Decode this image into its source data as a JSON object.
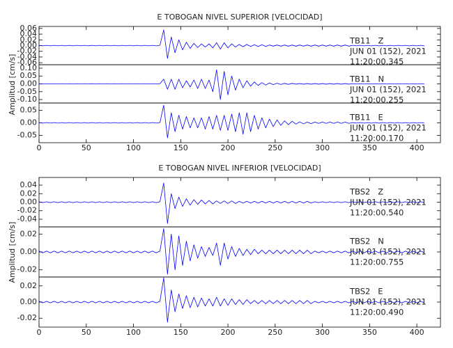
{
  "chart_data": [
    {
      "type": "line",
      "title": "E TOBOGAN NIVEL SUPERIOR [VELOCIDAD]",
      "y_label": "Amplitud [cm/s]",
      "xlim": [
        0,
        425
      ],
      "xticks": [
        0,
        50,
        100,
        150,
        200,
        250,
        300,
        350,
        400
      ],
      "x": [
        0,
        4,
        8,
        12,
        16,
        20,
        24,
        28,
        32,
        36,
        40,
        44,
        48,
        52,
        56,
        60,
        64,
        68,
        72,
        76,
        80,
        84,
        88,
        92,
        96,
        100,
        104,
        108,
        112,
        116,
        120,
        124,
        128,
        132,
        136,
        140,
        144,
        148,
        152,
        156,
        160,
        164,
        168,
        172,
        176,
        180,
        184,
        188,
        192,
        196,
        200,
        204,
        208,
        212,
        216,
        220,
        224,
        228,
        232,
        236,
        240,
        244,
        248,
        252,
        256,
        260,
        264,
        268,
        272,
        276,
        280,
        284,
        288,
        292,
        296,
        300,
        304,
        308,
        312,
        316,
        320,
        324,
        328,
        332,
        336,
        340,
        344,
        348,
        352,
        356,
        360,
        364,
        368,
        372,
        376,
        380,
        384,
        388,
        392,
        396,
        400,
        404,
        408
      ],
      "series": [
        {
          "name": "TB11   Z",
          "date": "JUN 01 (152), 2021",
          "time": "11:20:00.345",
          "color": "#0000ff",
          "ylim": [
            -0.067,
            0.067
          ],
          "yticks": [
            0.06,
            0.04,
            0.02,
            {
              "value": 0,
              "label": "0.00"
            },
            -0.02,
            -0.04,
            -0.06
          ],
          "values": [
            0.001,
            -0.001,
            0.001,
            -0.001,
            0.001,
            -0.001,
            0.001,
            -0.001,
            0.001,
            -0.001,
            0.001,
            -0.001,
            0.001,
            -0.001,
            0.001,
            -0.001,
            0.001,
            -0.001,
            0.001,
            -0.001,
            0.001,
            -0.001,
            0.001,
            -0.001,
            0.001,
            -0.001,
            0.001,
            -0.001,
            0.001,
            -0.001,
            0.001,
            -0.001,
            0.001,
            0.055,
            -0.045,
            0.03,
            -0.025,
            0.02,
            -0.015,
            0.012,
            -0.01,
            0.008,
            -0.007,
            0.006,
            -0.005,
            0.006,
            -0.008,
            0.01,
            -0.012,
            0.01,
            -0.008,
            0.006,
            -0.005,
            0.004,
            -0.004,
            0.004,
            -0.003,
            0.003,
            -0.003,
            0.003,
            -0.003,
            0.002,
            -0.002,
            0.002,
            -0.002,
            0.002,
            -0.002,
            0.002,
            -0.002,
            0.002,
            -0.002,
            0.002,
            -0.002,
            0.002,
            -0.002,
            0.002,
            -0.002,
            0.002,
            -0.002,
            0.002,
            -0.002,
            0.002,
            -0.002,
            0.001,
            -0.001,
            0.001,
            -0.001,
            0.001,
            -0.001,
            0.001,
            -0.001,
            0.001,
            -0.001,
            0.001,
            -0.001,
            0.001,
            -0.001,
            0.001,
            -0.001,
            0.001,
            -0.001,
            0.001,
            -0.001
          ]
        },
        {
          "name": "TB11   N",
          "date": "JUN 01 (152), 2021",
          "time": "11:20:00.255",
          "color": "#0000ff",
          "ylim": [
            -0.122,
            0.122
          ],
          "yticks": [
            {
              "value": 0.1,
              "label": "0.10"
            },
            0.05,
            {
              "value": 0,
              "label": "0.00"
            },
            -0.05,
            {
              "value": -0.1,
              "label": "-0.10"
            }
          ],
          "values": [
            0.001,
            -0.001,
            0.001,
            -0.001,
            0.001,
            -0.001,
            0.001,
            -0.001,
            0.001,
            -0.001,
            0.001,
            -0.001,
            0.001,
            -0.001,
            0.001,
            -0.001,
            0.001,
            -0.001,
            0.001,
            -0.001,
            0.001,
            -0.001,
            0.001,
            -0.001,
            0.001,
            -0.001,
            0.001,
            -0.001,
            0.001,
            -0.001,
            0.001,
            -0.001,
            0.001,
            0.03,
            -0.035,
            0.03,
            -0.035,
            0.03,
            -0.025,
            0.02,
            -0.02,
            0.025,
            -0.03,
            0.03,
            -0.03,
            0.025,
            -0.05,
            0.09,
            -0.1,
            0.08,
            -0.07,
            0.05,
            -0.04,
            0.03,
            -0.025,
            0.02,
            -0.015,
            0.012,
            -0.01,
            0.008,
            -0.008,
            0.006,
            -0.005,
            0.004,
            -0.004,
            0.003,
            -0.003,
            0.003,
            -0.002,
            0.002,
            -0.002,
            0.002,
            -0.002,
            0.002,
            -0.002,
            0.002,
            -0.002,
            0.002,
            -0.002,
            0.002,
            -0.002,
            0.002,
            -0.002,
            0.001,
            -0.001,
            0.001,
            -0.001,
            0.001,
            -0.001,
            0.001,
            -0.001,
            0.001,
            -0.001,
            0.001,
            -0.001,
            0.001,
            -0.001,
            0.001,
            -0.001,
            0.001,
            -0.001,
            0.001,
            -0.001
          ]
        },
        {
          "name": "TB11   E",
          "date": "JUN 01 (152), 2021",
          "time": "11:20:00.170",
          "color": "#0000ff",
          "ylim": [
            -0.079,
            0.079
          ],
          "yticks": [
            0.05,
            {
              "value": 0,
              "label": "0.00"
            },
            -0.05
          ],
          "values": [
            0.001,
            -0.001,
            0.001,
            -0.001,
            0.001,
            -0.001,
            0.001,
            -0.001,
            0.001,
            -0.001,
            0.001,
            -0.001,
            0.001,
            -0.001,
            0.001,
            -0.001,
            0.001,
            -0.001,
            0.001,
            -0.001,
            0.001,
            -0.001,
            0.001,
            -0.001,
            0.001,
            -0.001,
            0.001,
            -0.001,
            0.001,
            -0.001,
            0.001,
            -0.001,
            0.001,
            0.07,
            -0.06,
            0.04,
            -0.035,
            0.03,
            -0.025,
            0.025,
            -0.02,
            0.02,
            -0.02,
            0.02,
            -0.025,
            0.025,
            -0.025,
            0.03,
            -0.03,
            0.03,
            -0.03,
            0.035,
            -0.035,
            0.04,
            -0.045,
            0.04,
            -0.035,
            0.03,
            -0.025,
            0.02,
            -0.02,
            0.015,
            -0.015,
            0.012,
            -0.01,
            0.008,
            -0.007,
            0.006,
            -0.005,
            0.004,
            -0.004,
            0.003,
            -0.003,
            0.003,
            -0.002,
            0.003,
            -0.002,
            0.003,
            -0.002,
            0.003,
            -0.002,
            0.003,
            -0.002,
            0.001,
            -0.001,
            0.001,
            -0.001,
            0.001,
            -0.001,
            0.001,
            -0.001,
            0.001,
            -0.001,
            0.001,
            -0.001,
            0.001,
            -0.001,
            0.001,
            -0.001,
            0.001,
            -0.001,
            0.001,
            -0.001
          ]
        }
      ]
    },
    {
      "type": "line",
      "title": "E TOBOGAN NIVEL INFERIOR [VELOCIDAD]",
      "y_label": "Amplitud [cm/s]",
      "xlim": [
        0,
        425
      ],
      "xticks": [
        0,
        50,
        100,
        150,
        200,
        250,
        300,
        350,
        400
      ],
      "x": [
        0,
        4,
        8,
        12,
        16,
        20,
        24,
        28,
        32,
        36,
        40,
        44,
        48,
        52,
        56,
        60,
        64,
        68,
        72,
        76,
        80,
        84,
        88,
        92,
        96,
        100,
        104,
        108,
        112,
        116,
        120,
        124,
        128,
        132,
        136,
        140,
        144,
        148,
        152,
        156,
        160,
        164,
        168,
        172,
        176,
        180,
        184,
        188,
        192,
        196,
        200,
        204,
        208,
        212,
        216,
        220,
        224,
        228,
        232,
        236,
        240,
        244,
        248,
        252,
        256,
        260,
        264,
        268,
        272,
        276,
        280,
        284,
        288,
        292,
        296,
        300,
        304,
        308,
        312,
        316,
        320,
        324,
        328,
        332,
        336,
        340,
        344,
        348,
        352,
        356,
        360,
        364,
        368,
        372,
        376,
        380,
        384,
        388,
        392,
        396,
        400,
        404,
        408
      ],
      "series": [
        {
          "name": "TBS2   Z",
          "date": "JUN 01 (152), 2021",
          "time": "11:20:00.540",
          "color": "#0000ff",
          "ylim": [
            -0.058,
            0.058
          ],
          "yticks": [
            0.04,
            0.02,
            {
              "value": 0,
              "label": "0.00"
            },
            -0.02,
            -0.04
          ],
          "values": [
            0.001,
            -0.001,
            0.001,
            -0.001,
            0.001,
            -0.001,
            0.001,
            -0.001,
            0.001,
            -0.001,
            0.001,
            -0.001,
            0.001,
            -0.001,
            0.001,
            -0.001,
            0.001,
            -0.001,
            0.001,
            -0.001,
            0.001,
            -0.001,
            0.001,
            -0.001,
            0.001,
            -0.001,
            0.001,
            -0.001,
            0.001,
            -0.001,
            0.001,
            -0.001,
            0.001,
            0.045,
            -0.05,
            0.02,
            -0.015,
            0.012,
            -0.01,
            0.008,
            -0.007,
            0.006,
            -0.005,
            0.005,
            -0.004,
            0.004,
            -0.004,
            0.003,
            -0.003,
            0.003,
            -0.003,
            0.003,
            -0.003,
            0.002,
            -0.002,
            0.002,
            -0.002,
            0.002,
            -0.002,
            0.002,
            -0.002,
            0.002,
            -0.002,
            0.002,
            -0.002,
            0.002,
            -0.002,
            0.002,
            -0.002,
            0.002,
            -0.002,
            0.002,
            -0.002,
            0.001,
            -0.001,
            0.001,
            -0.001,
            0.001,
            -0.001,
            0.001,
            -0.001,
            0.001,
            -0.001,
            0.001,
            -0.001,
            0.001,
            -0.001,
            0.001,
            -0.001,
            0.001,
            -0.001,
            0.001,
            -0.001,
            0.001,
            -0.001,
            0.001,
            -0.001,
            0.001,
            -0.001,
            0.001,
            -0.001,
            0.001,
            -0.001
          ]
        },
        {
          "name": "TBS2   N",
          "date": "JUN 01 (152), 2021",
          "time": "11:20:00.755",
          "color": "#0000ff",
          "ylim": [
            -0.028,
            0.028
          ],
          "yticks": [
            0.02,
            {
              "value": 0,
              "label": "0.00"
            },
            -0.02
          ],
          "values": [
            0.001,
            -0.001,
            0.001,
            -0.001,
            0.001,
            -0.001,
            0.001,
            -0.001,
            0.001,
            -0.001,
            0.001,
            -0.001,
            0.001,
            -0.001,
            0.001,
            -0.001,
            0.001,
            -0.001,
            0.001,
            -0.001,
            0.001,
            -0.001,
            0.001,
            -0.001,
            0.001,
            -0.001,
            0.001,
            -0.001,
            0.001,
            -0.001,
            0.001,
            -0.001,
            0.001,
            0.026,
            -0.025,
            0.02,
            -0.02,
            0.018,
            -0.015,
            0.012,
            -0.01,
            0.008,
            -0.007,
            0.006,
            -0.005,
            0.005,
            -0.004,
            0.01,
            -0.015,
            0.01,
            -0.008,
            0.006,
            -0.005,
            0.004,
            -0.004,
            0.003,
            -0.003,
            0.003,
            -0.002,
            0.002,
            -0.002,
            0.002,
            -0.002,
            0.002,
            -0.002,
            0.002,
            -0.002,
            0.002,
            -0.002,
            0.002,
            -0.002,
            0.002,
            -0.002,
            0.001,
            -0.001,
            0.001,
            -0.001,
            0.001,
            -0.001,
            0.001,
            -0.001,
            0.001,
            -0.001,
            0.001,
            -0.001,
            0.001,
            -0.001,
            0.001,
            -0.001,
            0.001,
            -0.001,
            0.001,
            -0.001,
            0.001,
            -0.001,
            0.001,
            -0.001,
            0.001,
            -0.001,
            0.001,
            -0.001,
            0.001,
            -0.001
          ]
        },
        {
          "name": "TBS2   E",
          "date": "JUN 01 (152), 2021",
          "time": "11:20:00.490",
          "color": "#0000ff",
          "ylim": [
            -0.031,
            0.031
          ],
          "yticks": [
            0.02,
            {
              "value": 0,
              "label": "0.00"
            },
            -0.02
          ],
          "values": [
            0.001,
            -0.001,
            0.001,
            -0.001,
            0.001,
            -0.001,
            0.001,
            -0.001,
            0.001,
            -0.001,
            0.001,
            -0.001,
            0.001,
            -0.001,
            0.001,
            -0.001,
            0.001,
            -0.001,
            0.001,
            -0.001,
            0.001,
            -0.001,
            0.001,
            -0.001,
            0.001,
            -0.001,
            0.001,
            -0.001,
            0.001,
            -0.001,
            0.001,
            -0.001,
            0.001,
            0.03,
            -0.025,
            0.015,
            -0.012,
            0.01,
            -0.008,
            0.008,
            -0.007,
            0.006,
            -0.006,
            0.005,
            -0.005,
            0.004,
            -0.005,
            0.006,
            -0.005,
            0.004,
            -0.004,
            0.004,
            -0.003,
            0.003,
            -0.003,
            0.003,
            -0.002,
            0.002,
            -0.002,
            0.002,
            -0.002,
            0.002,
            -0.002,
            0.002,
            -0.002,
            0.002,
            -0.002,
            0.002,
            -0.002,
            0.002,
            -0.002,
            0.002,
            -0.002,
            0.001,
            -0.001,
            0.001,
            -0.001,
            0.001,
            -0.001,
            0.001,
            -0.001,
            0.001,
            -0.001,
            0.001,
            -0.001,
            0.001,
            -0.001,
            0.001,
            -0.001,
            0.001,
            -0.001,
            0.001,
            -0.001,
            0.001,
            -0.001,
            0.001,
            -0.001,
            0.001,
            -0.001,
            0.001,
            -0.001,
            0.001,
            -0.001
          ]
        }
      ]
    }
  ]
}
